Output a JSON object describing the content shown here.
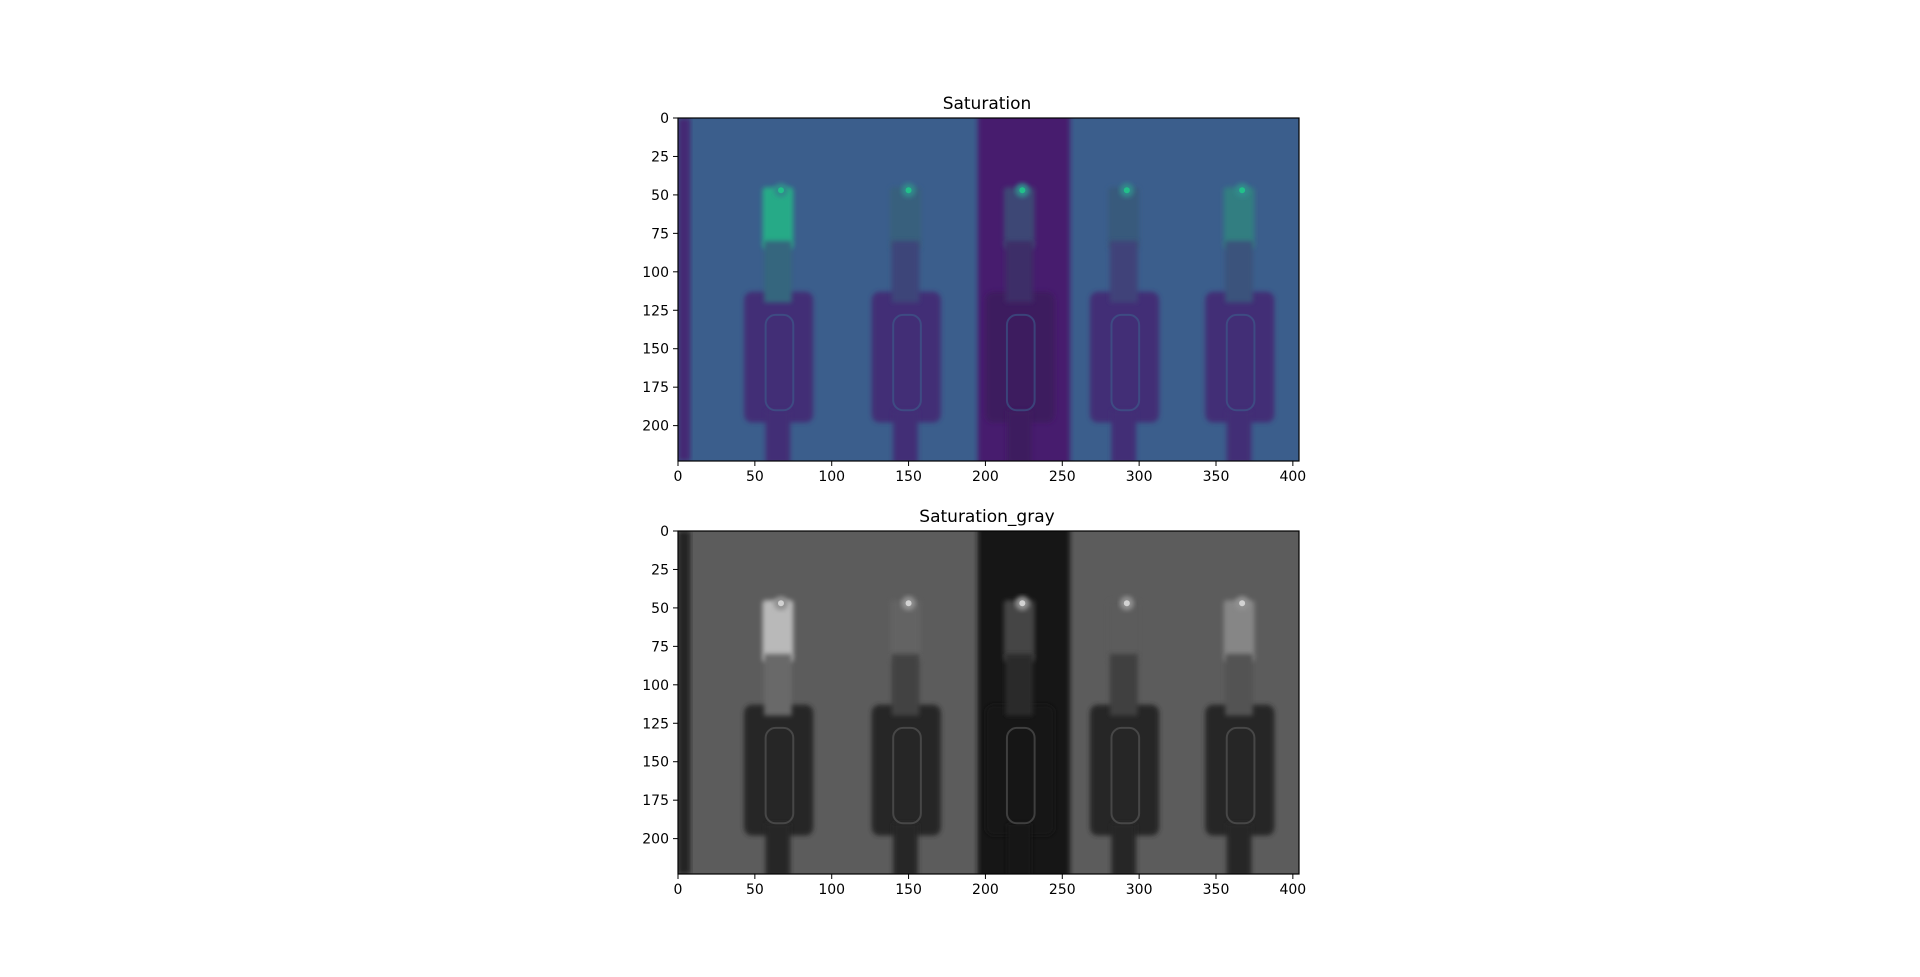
{
  "chart_data": [
    {
      "type": "heatmap",
      "title": "Saturation",
      "colormap": "viridis",
      "xlim": [
        0,
        404
      ],
      "ylim": [
        223,
        0
      ],
      "xticks": [
        0,
        50,
        100,
        150,
        200,
        250,
        300,
        350,
        400
      ],
      "yticks": [
        0,
        25,
        50,
        75,
        100,
        125,
        150,
        175,
        200
      ],
      "grid": false,
      "colors": {
        "background": "#3b5e8c",
        "dark": "#461e6e",
        "highlight": "#22c08a"
      },
      "fuses": [
        {
          "x": 65,
          "label_value": 0.85
        },
        {
          "x": 148,
          "label_value": 0.35
        },
        {
          "x": 222,
          "label_value": 0.2
        },
        {
          "x": 290,
          "label_value": 0.3
        },
        {
          "x": 365,
          "label_value": 0.55
        }
      ],
      "dark_band": {
        "x": [
          195,
          255
        ]
      }
    },
    {
      "type": "heatmap",
      "title": "Saturation_gray",
      "colormap": "gray",
      "xlim": [
        0,
        404
      ],
      "ylim": [
        223,
        0
      ],
      "xticks": [
        0,
        50,
        100,
        150,
        200,
        250,
        300,
        350,
        400
      ],
      "yticks": [
        0,
        25,
        50,
        75,
        100,
        125,
        150,
        175,
        200
      ],
      "grid": false,
      "colors": {
        "background": "#5c5c5c",
        "dark": "#161616",
        "highlight": "#d2d2d2"
      },
      "fuses": [
        {
          "x": 65,
          "label_value": 0.85
        },
        {
          "x": 148,
          "label_value": 0.35
        },
        {
          "x": 222,
          "label_value": 0.2
        },
        {
          "x": 290,
          "label_value": 0.3
        },
        {
          "x": 365,
          "label_value": 0.55
        }
      ],
      "dark_band": {
        "x": [
          195,
          255
        ]
      }
    }
  ]
}
